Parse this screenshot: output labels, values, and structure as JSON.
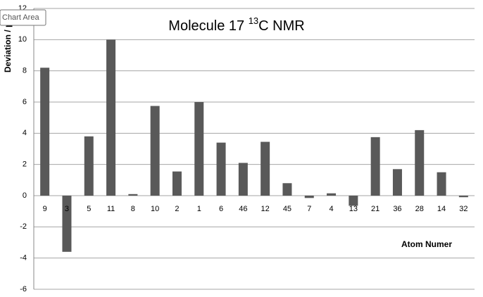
{
  "chart_data": {
    "type": "bar",
    "title": {
      "text": "Molecule 17",
      "superscript": "13",
      "suffix": "C NMR"
    },
    "y_label": "Deviation / ppm",
    "x_label": "Atom Numer",
    "categories": [
      "9",
      "3",
      "5",
      "11",
      "8",
      "10",
      "2",
      "1",
      "6",
      "46",
      "12",
      "45",
      "7",
      "4",
      "13",
      "21",
      "36",
      "28",
      "14",
      "32"
    ],
    "values": [
      8.2,
      -3.6,
      3.8,
      10,
      0.1,
      5.75,
      1.55,
      6,
      3.4,
      2.1,
      3.45,
      0.8,
      -0.15,
      0.15,
      -0.65,
      3.75,
      1.7,
      4.2,
      1.5,
      -0.1
    ],
    "color": "#595959",
    "ylim": [
      -6,
      12
    ],
    "yticks": [
      -6,
      -4,
      -2,
      0,
      2,
      4,
      6,
      8,
      10,
      12
    ],
    "grid": true
  },
  "tooltip": "Chart Area"
}
